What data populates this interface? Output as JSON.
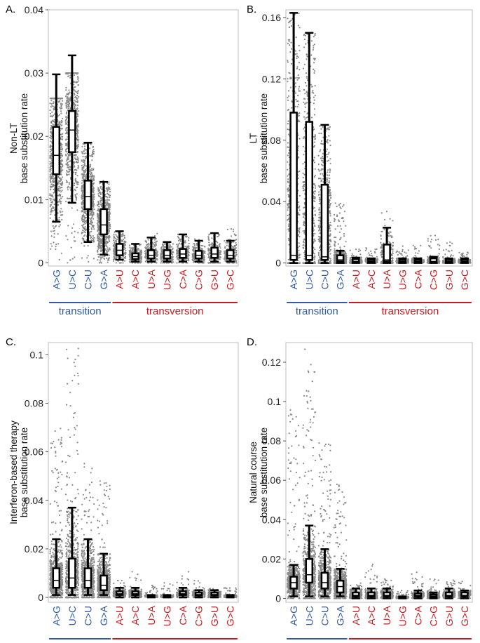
{
  "colors": {
    "transition": "#2e5aa6",
    "transversion": "#c8191e",
    "points": "#8a8a8a",
    "whisker": "#000000",
    "frame": "#bdbdbd"
  },
  "groups": {
    "transition": "transition",
    "transversion": "transversion"
  },
  "chart_data": [
    {
      "panel_label": "A.",
      "type": "scatter",
      "ylabel_line1": "Non-LT",
      "ylabel_line2": "base substitution rate",
      "ylim": [
        -0.0005,
        0.04
      ],
      "yticks": [
        0,
        0.01,
        0.02,
        0.03,
        0.04
      ],
      "ytick_labels": [
        "0",
        "0.01",
        "0.02",
        "0.03",
        "0.04"
      ],
      "categories": [
        "A>G",
        "U>C",
        "C>U",
        "G>A",
        "A>U",
        "A>C",
        "U>A",
        "U>G",
        "C>A",
        "C>G",
        "G>U",
        "G>C"
      ],
      "groups": [
        "transition",
        "transition",
        "transition",
        "transition",
        "transversion",
        "transversion",
        "transversion",
        "transversion",
        "transversion",
        "transversion",
        "transversion",
        "transversion"
      ],
      "spread": [
        0.026,
        0.03,
        0.019,
        0.013,
        0.005,
        0.003,
        0.0055,
        0.003,
        0.0045,
        0.004,
        0.005,
        0.0055
      ],
      "stats": [
        {
          "whisker_low": 0.0065,
          "q1": 0.014,
          "median": 0.017,
          "q3": 0.0215,
          "whisker_high": 0.0298
        },
        {
          "whisker_low": 0.0095,
          "q1": 0.0175,
          "median": 0.021,
          "q3": 0.024,
          "whisker_high": 0.0328
        },
        {
          "whisker_low": 0.0033,
          "q1": 0.0085,
          "median": 0.0105,
          "q3": 0.013,
          "whisker_high": 0.019
        },
        {
          "whisker_low": 0.0013,
          "q1": 0.0045,
          "median": 0.006,
          "q3": 0.0085,
          "whisker_high": 0.0128
        },
        {
          "whisker_low": 0.0005,
          "q1": 0.0012,
          "median": 0.002,
          "q3": 0.003,
          "whisker_high": 0.005
        },
        {
          "whisker_low": 0.0002,
          "q1": 0.0006,
          "median": 0.001,
          "q3": 0.0015,
          "whisker_high": 0.003
        },
        {
          "whisker_low": 0.0002,
          "q1": 0.0007,
          "median": 0.0012,
          "q3": 0.002,
          "whisker_high": 0.004
        },
        {
          "whisker_low": 0.0002,
          "q1": 0.0007,
          "median": 0.0012,
          "q3": 0.002,
          "whisker_high": 0.0033
        },
        {
          "whisker_low": 0.0002,
          "q1": 0.0008,
          "median": 0.0014,
          "q3": 0.0022,
          "whisker_high": 0.0045
        },
        {
          "whisker_low": 0.0002,
          "q1": 0.0007,
          "median": 0.0012,
          "q3": 0.0019,
          "whisker_high": 0.0035
        },
        {
          "whisker_low": 0.0002,
          "q1": 0.0008,
          "median": 0.0014,
          "q3": 0.0024,
          "whisker_high": 0.0047
        },
        {
          "whisker_low": 0.0002,
          "q1": 0.0007,
          "median": 0.0012,
          "q3": 0.002,
          "whisker_high": 0.0035
        }
      ]
    },
    {
      "panel_label": "B.",
      "type": "scatter",
      "ylabel_line1": "LT",
      "ylabel_line2": "base substitution rate",
      "ylim": [
        -0.002,
        0.165
      ],
      "yticks": [
        0,
        0.04,
        0.08,
        0.12,
        0.16
      ],
      "ytick_labels": [
        "0",
        "0.04",
        "0.08",
        "0.12",
        "0.16"
      ],
      "categories": [
        "A>G",
        "U>C",
        "C>U",
        "G>A",
        "A>U",
        "A>C",
        "U>A",
        "U>G",
        "C>A",
        "C>G",
        "G>U",
        "G>C"
      ],
      "groups": [
        "transition",
        "transition",
        "transition",
        "transition",
        "transversion",
        "transversion",
        "transversion",
        "transversion",
        "transversion",
        "transversion",
        "transversion",
        "transversion"
      ],
      "spread": [
        0.163,
        0.15,
        0.09,
        0.04,
        0.009,
        0.011,
        0.035,
        0.011,
        0.012,
        0.018,
        0.014,
        0.008
      ],
      "stats": [
        {
          "whisker_low": 0.0,
          "q1": 0.002,
          "median": 0.005,
          "q3": 0.098,
          "whisker_high": 0.163
        },
        {
          "whisker_low": 0.0,
          "q1": 0.002,
          "median": 0.005,
          "q3": 0.092,
          "whisker_high": 0.15
        },
        {
          "whisker_low": 0.0,
          "q1": 0.002,
          "median": 0.004,
          "q3": 0.051,
          "whisker_high": 0.09
        },
        {
          "whisker_low": 0.0,
          "q1": 0.001,
          "median": 0.002,
          "q3": 0.005,
          "whisker_high": 0.008
        },
        {
          "whisker_low": 0.0,
          "q1": 0.0005,
          "median": 0.001,
          "q3": 0.0025,
          "whisker_high": 0.0035
        },
        {
          "whisker_low": 0.0,
          "q1": 0.0005,
          "median": 0.001,
          "q3": 0.002,
          "whisker_high": 0.003
        },
        {
          "whisker_low": 0.0,
          "q1": 0.001,
          "median": 0.002,
          "q3": 0.012,
          "whisker_high": 0.023
        },
        {
          "whisker_low": 0.0,
          "q1": 0.0005,
          "median": 0.001,
          "q3": 0.002,
          "whisker_high": 0.003
        },
        {
          "whisker_low": 0.0,
          "q1": 0.0005,
          "median": 0.001,
          "q3": 0.002,
          "whisker_high": 0.003
        },
        {
          "whisker_low": 0.0,
          "q1": 0.0005,
          "median": 0.001,
          "q3": 0.003,
          "whisker_high": 0.004
        },
        {
          "whisker_low": 0.0,
          "q1": 0.0005,
          "median": 0.001,
          "q3": 0.002,
          "whisker_high": 0.003
        },
        {
          "whisker_low": 0.0,
          "q1": 0.0005,
          "median": 0.001,
          "q3": 0.002,
          "whisker_high": 0.003
        }
      ]
    },
    {
      "panel_label": "C.",
      "type": "scatter",
      "ylabel_line1": "Interferon-based therapy",
      "ylabel_line2": "base substitution rate",
      "ylim": [
        -0.002,
        0.105
      ],
      "yticks": [
        0,
        0.02,
        0.04,
        0.06,
        0.08,
        0.1
      ],
      "ytick_labels": [
        "0",
        "0.02",
        "0.04",
        "0.06",
        "0.08",
        "0.1"
      ],
      "categories": [
        "A>G",
        "U>C",
        "C>U",
        "G>A",
        "A>U",
        "A>C",
        "U>A",
        "U>G",
        "C>A",
        "C>G",
        "G>U",
        "G>C"
      ],
      "groups": [
        "transition",
        "transition",
        "transition",
        "transition",
        "transversion",
        "transversion",
        "transversion",
        "transversion",
        "transversion",
        "transversion",
        "transversion",
        "transversion"
      ],
      "spread": [
        0.07,
        0.103,
        0.056,
        0.048,
        0.007,
        0.011,
        0.005,
        0.006,
        0.011,
        0.007,
        0.004,
        0.004
      ],
      "stats": [
        {
          "whisker_low": 0.001,
          "q1": 0.004,
          "median": 0.007,
          "q3": 0.012,
          "whisker_high": 0.024
        },
        {
          "whisker_low": 0.001,
          "q1": 0.004,
          "median": 0.008,
          "q3": 0.016,
          "whisker_high": 0.037
        },
        {
          "whisker_low": 0.001,
          "q1": 0.004,
          "median": 0.007,
          "q3": 0.012,
          "whisker_high": 0.024
        },
        {
          "whisker_low": 0.001,
          "q1": 0.003,
          "median": 0.005,
          "q3": 0.009,
          "whisker_high": 0.018
        },
        {
          "whisker_low": 0.0,
          "q1": 0.001,
          "median": 0.0015,
          "q3": 0.0025,
          "whisker_high": 0.004
        },
        {
          "whisker_low": 0.0,
          "q1": 0.001,
          "median": 0.0015,
          "q3": 0.0025,
          "whisker_high": 0.004
        },
        {
          "whisker_low": 0.0,
          "q1": 0.0003,
          "median": 0.0005,
          "q3": 0.0008,
          "whisker_high": 0.001
        },
        {
          "whisker_low": 0.0,
          "q1": 0.0003,
          "median": 0.0005,
          "q3": 0.0008,
          "whisker_high": 0.001
        },
        {
          "whisker_low": 0.0,
          "q1": 0.001,
          "median": 0.0015,
          "q3": 0.0025,
          "whisker_high": 0.004
        },
        {
          "whisker_low": 0.0,
          "q1": 0.0008,
          "median": 0.0012,
          "q3": 0.002,
          "whisker_high": 0.003
        },
        {
          "whisker_low": 0.0,
          "q1": 0.0008,
          "median": 0.0012,
          "q3": 0.002,
          "whisker_high": 0.003
        },
        {
          "whisker_low": 0.0,
          "q1": 0.0003,
          "median": 0.0005,
          "q3": 0.0008,
          "whisker_high": 0.001
        }
      ]
    },
    {
      "panel_label": "D.",
      "type": "scatter",
      "ylabel_line1": "Natural course",
      "ylabel_line2": "base substitution rate",
      "ylim": [
        -0.002,
        0.13
      ],
      "yticks": [
        0,
        0.02,
        0.04,
        0.06,
        0.08,
        0.1,
        0.12
      ],
      "ytick_labels": [
        "0",
        "0.02",
        "0.04",
        "0.06",
        "0.08",
        "0.1",
        "0.12"
      ],
      "categories": [
        "A>G",
        "U>C",
        "C>U",
        "G>A",
        "A>U",
        "A>C",
        "U>A",
        "U>G",
        "C>A",
        "C>G",
        "G>U",
        "G>C"
      ],
      "groups": [
        "transition",
        "transition",
        "transition",
        "transition",
        "transversion",
        "transversion",
        "transversion",
        "transversion",
        "transversion",
        "transversion",
        "transversion",
        "transversion"
      ],
      "spread": [
        0.097,
        0.128,
        0.081,
        0.059,
        0.008,
        0.018,
        0.011,
        0.004,
        0.015,
        0.01,
        0.01,
        0.009
      ],
      "stats": [
        {
          "whisker_low": 0.001,
          "q1": 0.005,
          "median": 0.008,
          "q3": 0.011,
          "whisker_high": 0.017
        },
        {
          "whisker_low": 0.001,
          "q1": 0.008,
          "median": 0.012,
          "q3": 0.02,
          "whisker_high": 0.037
        },
        {
          "whisker_low": 0.001,
          "q1": 0.005,
          "median": 0.008,
          "q3": 0.013,
          "whisker_high": 0.025
        },
        {
          "whisker_low": 0.001,
          "q1": 0.003,
          "median": 0.006,
          "q3": 0.009,
          "whisker_high": 0.015
        },
        {
          "whisker_low": 0.0,
          "q1": 0.001,
          "median": 0.0015,
          "q3": 0.003,
          "whisker_high": 0.005
        },
        {
          "whisker_low": 0.0,
          "q1": 0.001,
          "median": 0.0015,
          "q3": 0.003,
          "whisker_high": 0.005
        },
        {
          "whisker_low": 0.0,
          "q1": 0.001,
          "median": 0.0015,
          "q3": 0.003,
          "whisker_high": 0.005
        },
        {
          "whisker_low": 0.0,
          "q1": 0.0003,
          "median": 0.0005,
          "q3": 0.0008,
          "whisker_high": 0.001
        },
        {
          "whisker_low": 0.0,
          "q1": 0.001,
          "median": 0.0015,
          "q3": 0.0025,
          "whisker_high": 0.004
        },
        {
          "whisker_low": 0.0,
          "q1": 0.0008,
          "median": 0.0012,
          "q3": 0.002,
          "whisker_high": 0.003
        },
        {
          "whisker_low": 0.0,
          "q1": 0.001,
          "median": 0.0015,
          "q3": 0.003,
          "whisker_high": 0.005
        },
        {
          "whisker_low": 0.0,
          "q1": 0.001,
          "median": 0.0015,
          "q3": 0.003,
          "whisker_high": 0.004
        }
      ]
    }
  ]
}
